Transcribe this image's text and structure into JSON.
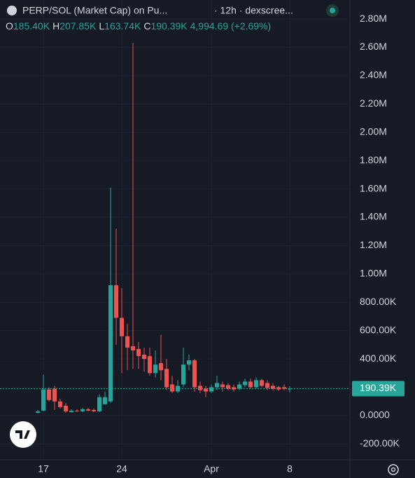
{
  "chart_data": {
    "type": "candlestick",
    "title": "PERP/SOL (Market Cap) on Pu...",
    "subtitle": "· 12h · dexscree...",
    "ohlc_legend": [
      {
        "key": "O",
        "value": "185.40K"
      },
      {
        "key": "H",
        "value": "207.85K"
      },
      {
        "key": "L",
        "value": "163.74K"
      },
      {
        "key": "C",
        "value": "190.39K"
      }
    ],
    "change": "4,994.69 (+2.69%)",
    "x": [
      null,
      "17",
      null,
      null,
      null,
      null,
      null,
      null,
      null,
      null,
      null,
      null,
      null,
      null,
      null,
      "24",
      null,
      null,
      null,
      null,
      null,
      null,
      null,
      null,
      null,
      null,
      null,
      null,
      null,
      null,
      null,
      "Apr",
      null,
      null,
      null,
      null,
      null,
      null,
      null,
      null,
      null,
      null,
      null,
      null,
      null,
      "8"
    ],
    "open": [
      20000,
      35000,
      185000,
      190000,
      100000,
      70000,
      25000,
      35000,
      30000,
      45000,
      40000,
      30000,
      80000,
      100000,
      920000,
      690000,
      560000,
      490000,
      470000,
      430000,
      420000,
      300000,
      370000,
      330000,
      220000,
      170000,
      220000,
      360000,
      390000,
      210000,
      190000,
      170000,
      200000,
      220000,
      215000,
      200000,
      190000,
      215000,
      240000,
      200000,
      250000,
      230000,
      210000,
      200000,
      200000,
      185400
    ],
    "high": [
      40000,
      290000,
      200000,
      210000,
      120000,
      90000,
      45000,
      45000,
      55000,
      55000,
      50000,
      150000,
      170000,
      1610000,
      1320000,
      900000,
      650000,
      2630000,
      520000,
      480000,
      480000,
      460000,
      570000,
      400000,
      280000,
      250000,
      480000,
      430000,
      400000,
      240000,
      210000,
      220000,
      280000,
      240000,
      230000,
      220000,
      240000,
      260000,
      260000,
      270000,
      260000,
      250000,
      230000,
      210000,
      220000,
      207850
    ],
    "low": [
      15000,
      30000,
      100000,
      40000,
      50000,
      20000,
      20000,
      25000,
      25000,
      30000,
      25000,
      25000,
      90000,
      90000,
      500000,
      300000,
      320000,
      330000,
      330000,
      310000,
      280000,
      270000,
      250000,
      180000,
      160000,
      160000,
      200000,
      320000,
      170000,
      160000,
      130000,
      160000,
      180000,
      170000,
      180000,
      170000,
      180000,
      200000,
      190000,
      190000,
      200000,
      180000,
      180000,
      175000,
      180000,
      163740
    ],
    "close": [
      30000,
      185000,
      110000,
      100000,
      60000,
      30000,
      35000,
      30000,
      45000,
      35000,
      30000,
      130000,
      130000,
      920000,
      690000,
      560000,
      480000,
      460000,
      420000,
      400000,
      300000,
      360000,
      320000,
      200000,
      170000,
      210000,
      360000,
      390000,
      200000,
      180000,
      170000,
      200000,
      230000,
      200000,
      190000,
      185000,
      220000,
      240000,
      200000,
      250000,
      210000,
      195000,
      190000,
      185000,
      190000,
      190390
    ],
    "up_color": "#26a69a",
    "down_color": "#ef5350",
    "last_price": {
      "value": 190390,
      "label": "190.39K"
    },
    "ylim": [
      -312000,
      2934000
    ],
    "yticks": [
      {
        "value": -200000,
        "label": "-200.00K"
      },
      {
        "value": 0,
        "label": "0.0000"
      },
      {
        "value": 200000,
        "label": ""
      },
      {
        "value": 400000,
        "label": "400.00K"
      },
      {
        "value": 600000,
        "label": "600.00K"
      },
      {
        "value": 800000,
        "label": "800.00K"
      },
      {
        "value": 1000000,
        "label": "1.00M"
      },
      {
        "value": 1200000,
        "label": "1.20M"
      },
      {
        "value": 1400000,
        "label": "1.40M"
      },
      {
        "value": 1600000,
        "label": "1.60M"
      },
      {
        "value": 1800000,
        "label": "1.80M"
      },
      {
        "value": 2000000,
        "label": "2.00M"
      },
      {
        "value": 2200000,
        "label": "2.20M"
      },
      {
        "value": 2400000,
        "label": "2.40M"
      },
      {
        "value": 2600000,
        "label": "2.60M"
      },
      {
        "value": 2800000,
        "label": "2.80M"
      }
    ],
    "grid": true
  }
}
